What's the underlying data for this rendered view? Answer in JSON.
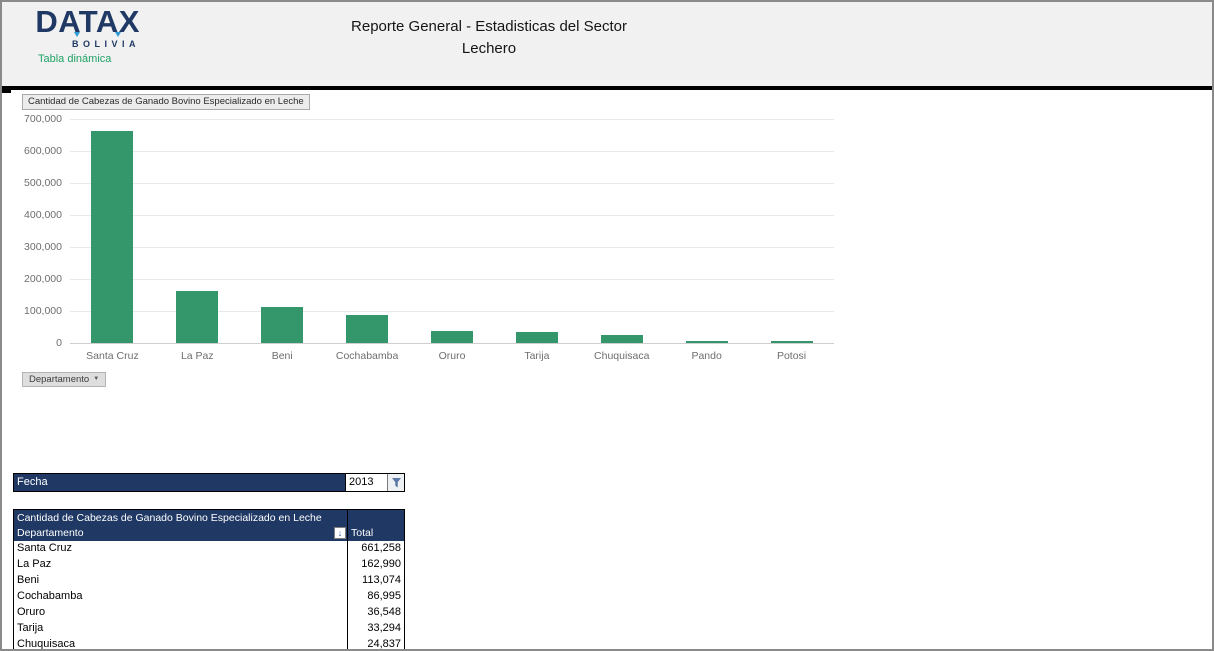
{
  "header": {
    "logo_text": "DATAX",
    "logo_subtext": "BOLIVIA",
    "nav_link": "Tabla dinámica",
    "title_line1": "Reporte General - Estadisticas del Sector",
    "title_line2": "Lechero"
  },
  "chart_data": {
    "type": "bar",
    "title": "Cantidad de Cabezas de Ganado Bovino Especializado en Leche",
    "categories": [
      "Santa Cruz",
      "La Paz",
      "Beni",
      "Cochabamba",
      "Oruro",
      "Tarija",
      "Chuquisaca",
      "Pando",
      "Potosi"
    ],
    "values": [
      661258,
      162990,
      113074,
      86995,
      36548,
      33294,
      24837,
      5000,
      4000
    ],
    "ylim": [
      0,
      700000
    ],
    "ytick_step": 100000,
    "grid": true,
    "legend": "none",
    "bar_color": "#34976b",
    "axis_field_button": "Departamento"
  },
  "filter_bar": {
    "label": "Fecha",
    "value": "2013",
    "icon": "funnel-filter-icon"
  },
  "pivot_table": {
    "title": "Cantidad de Cabezas de Ganado Bovino Especializado en Leche",
    "row_header": "Departamento",
    "value_header": "Total",
    "sort_icon": "sort-descending-icon",
    "rows": [
      {
        "name": "Santa Cruz",
        "value": "661,258"
      },
      {
        "name": "La Paz",
        "value": "162,990"
      },
      {
        "name": "Beni",
        "value": "113,074"
      },
      {
        "name": "Cochabamba",
        "value": "86,995"
      },
      {
        "name": "Oruro",
        "value": "36,548"
      },
      {
        "name": "Tarija",
        "value": "33,294"
      },
      {
        "name": "Chuquisaca",
        "value": "24,837"
      }
    ]
  },
  "colors": {
    "navy": "#1f3864",
    "bar_green": "#34976b",
    "link_green": "#21a366",
    "header_bg": "#f1f1f1",
    "grid_line": "#e9e9e9",
    "axis_text": "#6e6e6e"
  }
}
